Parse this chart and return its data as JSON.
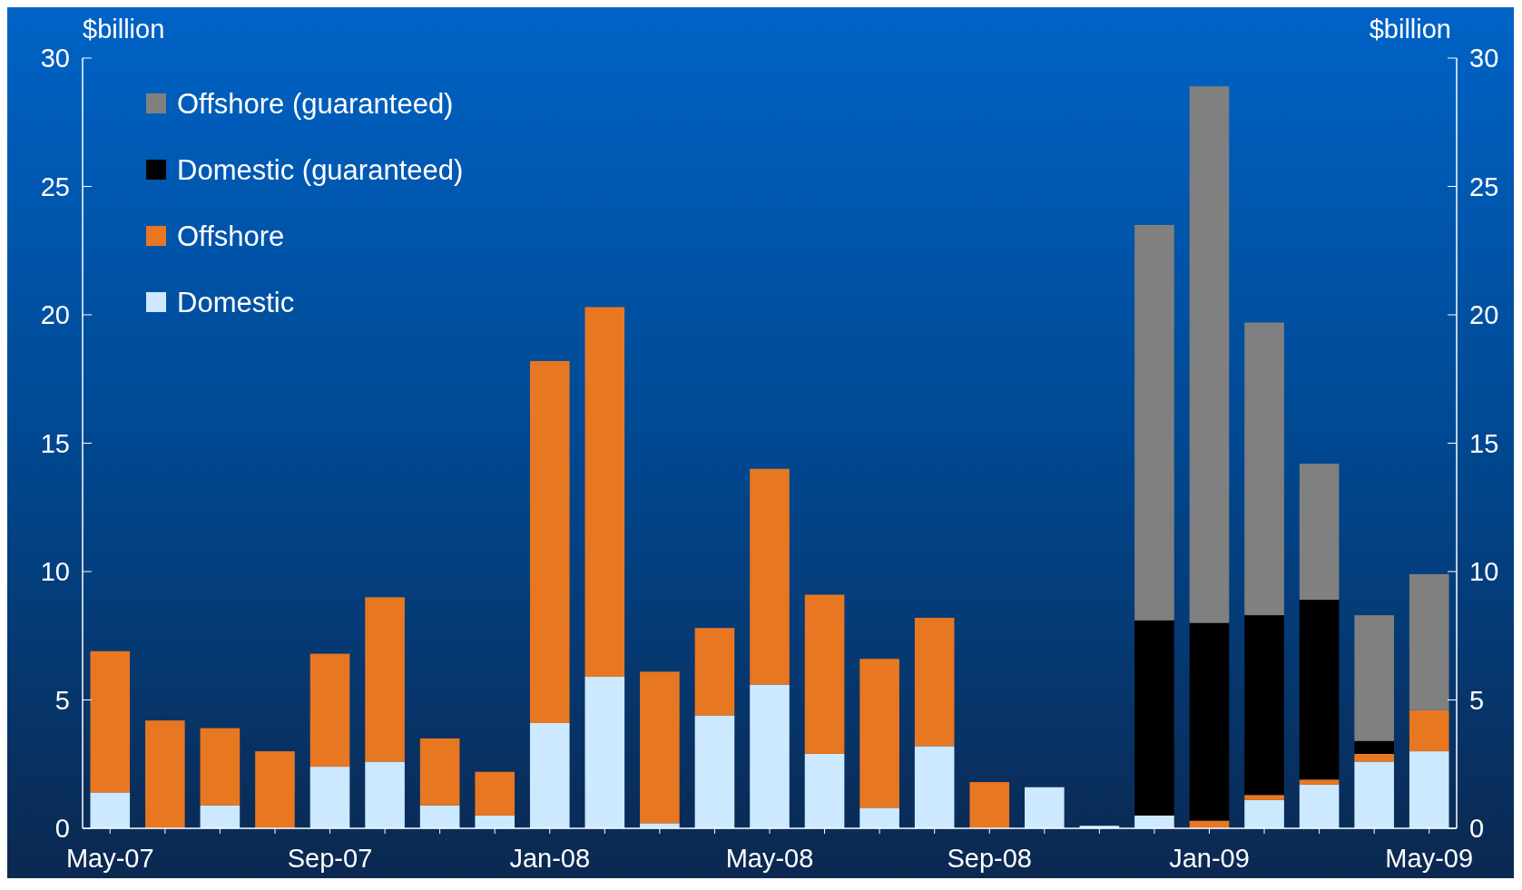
{
  "chart_data": {
    "type": "bar",
    "stacked": true,
    "ylabel": "$billion",
    "y2label": "$billion",
    "categories": [
      "May-07",
      null,
      null,
      null,
      "Sep-07",
      null,
      null,
      null,
      "Jan-08",
      null,
      null,
      null,
      "May-08",
      null,
      null,
      null,
      "Sep-08",
      null,
      null,
      null,
      "Jan-09",
      null,
      null,
      null,
      "May-09"
    ],
    "series": [
      {
        "name": "Domestic",
        "color": "#cce9ff",
        "values": [
          1.4,
          0,
          0.9,
          0,
          2.4,
          2.6,
          0.9,
          0.5,
          4.1,
          5.9,
          0.2,
          4.4,
          5.6,
          2.9,
          0.8,
          3.2,
          0,
          1.6,
          0.1,
          0.5,
          0,
          1.1,
          1.7,
          2.6,
          3.0
        ]
      },
      {
        "name": "Offshore",
        "color": "#e87722",
        "values": [
          5.5,
          4.2,
          3.0,
          3.0,
          4.4,
          6.4,
          2.6,
          1.7,
          14.1,
          14.4,
          5.9,
          3.4,
          8.4,
          6.2,
          5.8,
          5.0,
          1.8,
          0,
          0,
          0,
          0.3,
          0.2,
          0.2,
          0.3,
          1.6
        ]
      },
      {
        "name": "Domestic (guaranteed)",
        "color": "#000000",
        "values": [
          0,
          0,
          0,
          0,
          0,
          0,
          0,
          0,
          0,
          0,
          0,
          0,
          0,
          0,
          0,
          0,
          0,
          0,
          0,
          7.6,
          7.7,
          7.0,
          7.0,
          0.5,
          0
        ]
      },
      {
        "name": "Offshore (guaranteed)",
        "color": "#808080",
        "values": [
          0,
          0,
          0,
          0,
          0,
          0,
          0,
          0,
          0,
          0,
          0,
          0,
          0,
          0,
          0,
          0,
          0,
          0,
          0,
          15.4,
          20.9,
          11.4,
          5.3,
          4.9,
          5.3
        ]
      }
    ],
    "ylim": [
      0,
      30
    ],
    "yticks": [
      0,
      5,
      10,
      15,
      20,
      25,
      30
    ],
    "y2lim": [
      0,
      30
    ],
    "y2ticks": [
      0,
      5,
      10,
      15,
      20,
      25,
      30
    ],
    "legend": "top left"
  }
}
